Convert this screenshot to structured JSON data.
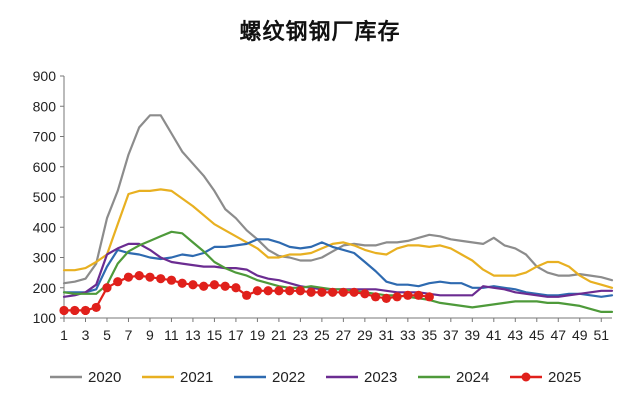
{
  "chart_data": {
    "type": "line",
    "title": "螺纹钢钢厂库存",
    "xlabel": "",
    "ylabel": "",
    "ylim": [
      100,
      900
    ],
    "yticks": [
      100,
      200,
      300,
      400,
      500,
      600,
      700,
      800,
      900
    ],
    "xticks": [
      1,
      3,
      5,
      7,
      9,
      11,
      13,
      15,
      17,
      19,
      21,
      23,
      25,
      27,
      29,
      31,
      33,
      35,
      37,
      39,
      41,
      43,
      45,
      47,
      49,
      51
    ],
    "xlim": [
      1,
      52
    ],
    "grid": false,
    "legend_position": "bottom",
    "series": [
      {
        "name": "2020",
        "color": "#8c8c8c",
        "marker": "none",
        "x": [
          1,
          2,
          3,
          4,
          5,
          6,
          7,
          8,
          9,
          10,
          11,
          12,
          13,
          14,
          15,
          16,
          17,
          18,
          19,
          20,
          21,
          22,
          23,
          24,
          25,
          26,
          27,
          28,
          29,
          30,
          31,
          32,
          33,
          34,
          35,
          36,
          37,
          38,
          39,
          40,
          41,
          42,
          43,
          44,
          45,
          46,
          47,
          48,
          49,
          50,
          51,
          52
        ],
        "values": [
          215,
          220,
          230,
          280,
          430,
          520,
          640,
          730,
          770,
          770,
          710,
          650,
          610,
          570,
          520,
          460,
          430,
          390,
          360,
          325,
          305,
          300,
          290,
          290,
          300,
          320,
          340,
          345,
          340,
          340,
          350,
          350,
          355,
          365,
          375,
          370,
          360,
          355,
          350,
          345,
          365,
          340,
          330,
          310,
          270,
          250,
          240,
          240,
          245,
          240,
          235,
          225
        ]
      },
      {
        "name": "2021",
        "color": "#e8b021",
        "marker": "none",
        "x": [
          1,
          2,
          3,
          4,
          5,
          6,
          7,
          8,
          9,
          10,
          11,
          12,
          13,
          14,
          15,
          16,
          17,
          18,
          19,
          20,
          21,
          22,
          23,
          24,
          25,
          26,
          27,
          28,
          29,
          30,
          31,
          32,
          33,
          34,
          35,
          36,
          37,
          38,
          39,
          40,
          41,
          42,
          43,
          44,
          45,
          46,
          47,
          48,
          49,
          50,
          51,
          52
        ],
        "values": [
          258,
          258,
          265,
          285,
          310,
          410,
          510,
          520,
          520,
          525,
          520,
          495,
          470,
          440,
          410,
          390,
          370,
          350,
          330,
          300,
          300,
          310,
          310,
          315,
          330,
          345,
          350,
          340,
          325,
          315,
          310,
          330,
          340,
          340,
          335,
          340,
          330,
          310,
          290,
          260,
          240,
          240,
          240,
          250,
          270,
          285,
          285,
          270,
          240,
          220,
          210,
          200
        ]
      },
      {
        "name": "2022",
        "color": "#2e6ab0",
        "marker": "none",
        "x": [
          1,
          2,
          3,
          4,
          5,
          6,
          7,
          8,
          9,
          10,
          11,
          12,
          13,
          14,
          15,
          16,
          17,
          18,
          19,
          20,
          21,
          22,
          23,
          24,
          25,
          26,
          27,
          28,
          29,
          30,
          31,
          32,
          33,
          34,
          35,
          36,
          37,
          38,
          39,
          40,
          41,
          42,
          43,
          44,
          45,
          46,
          47,
          48,
          49,
          50,
          51,
          52
        ],
        "values": [
          185,
          185,
          185,
          195,
          270,
          325,
          315,
          310,
          300,
          295,
          300,
          310,
          305,
          315,
          335,
          335,
          340,
          345,
          360,
          360,
          350,
          335,
          330,
          335,
          350,
          335,
          325,
          315,
          285,
          255,
          220,
          210,
          210,
          205,
          215,
          220,
          215,
          215,
          200,
          200,
          205,
          200,
          195,
          185,
          180,
          175,
          175,
          180,
          180,
          175,
          170,
          175
        ]
      },
      {
        "name": "2023",
        "color": "#6b2c91",
        "marker": "none",
        "x": [
          1,
          2,
          3,
          4,
          5,
          6,
          7,
          8,
          9,
          10,
          11,
          12,
          13,
          14,
          15,
          16,
          17,
          18,
          19,
          20,
          21,
          22,
          23,
          24,
          25,
          26,
          27,
          28,
          29,
          30,
          31,
          32,
          33,
          34,
          35,
          36,
          37,
          38,
          39,
          40,
          41,
          42,
          43,
          44,
          45,
          46,
          47,
          48,
          49,
          50,
          51,
          52
        ],
        "values": [
          170,
          175,
          185,
          210,
          310,
          330,
          345,
          345,
          325,
          300,
          285,
          280,
          275,
          270,
          270,
          265,
          265,
          260,
          240,
          230,
          225,
          215,
          205,
          200,
          195,
          195,
          195,
          195,
          195,
          195,
          190,
          185,
          185,
          185,
          180,
          175,
          175,
          175,
          175,
          205,
          200,
          195,
          185,
          180,
          175,
          170,
          170,
          175,
          180,
          185,
          190,
          190
        ]
      },
      {
        "name": "2024",
        "color": "#4e9a3a",
        "marker": "none",
        "x": [
          1,
          2,
          3,
          4,
          5,
          6,
          7,
          8,
          9,
          10,
          11,
          12,
          13,
          14,
          15,
          16,
          17,
          18,
          19,
          20,
          21,
          22,
          23,
          24,
          25,
          26,
          27,
          28,
          29,
          30,
          31,
          32,
          33,
          34,
          35,
          36,
          37,
          38,
          39,
          40,
          41,
          42,
          43,
          44,
          45,
          46,
          47,
          48,
          49,
          50,
          51,
          52
        ],
        "values": [
          185,
          180,
          180,
          180,
          210,
          280,
          320,
          340,
          355,
          370,
          385,
          380,
          350,
          320,
          285,
          265,
          250,
          240,
          225,
          215,
          205,
          200,
          200,
          205,
          200,
          195,
          195,
          190,
          185,
          180,
          175,
          175,
          170,
          165,
          160,
          150,
          145,
          140,
          135,
          140,
          145,
          150,
          155,
          155,
          155,
          150,
          150,
          145,
          140,
          130,
          120,
          120
        ]
      },
      {
        "name": "2025",
        "color": "#e0201b",
        "marker": "circle",
        "x": [
          1,
          2,
          3,
          4,
          5,
          6,
          7,
          8,
          9,
          10,
          11,
          12,
          13,
          14,
          15,
          16,
          17,
          18,
          19,
          20,
          21,
          22,
          23,
          24,
          25,
          26,
          27,
          28,
          29,
          30,
          31,
          32,
          33,
          34,
          35
        ],
        "values": [
          125,
          125,
          125,
          135,
          200,
          220,
          235,
          240,
          235,
          230,
          225,
          215,
          210,
          205,
          210,
          205,
          200,
          175,
          190,
          190,
          190,
          190,
          190,
          185,
          185,
          185,
          185,
          185,
          180,
          170,
          165,
          170,
          175,
          175,
          170
        ]
      }
    ]
  }
}
